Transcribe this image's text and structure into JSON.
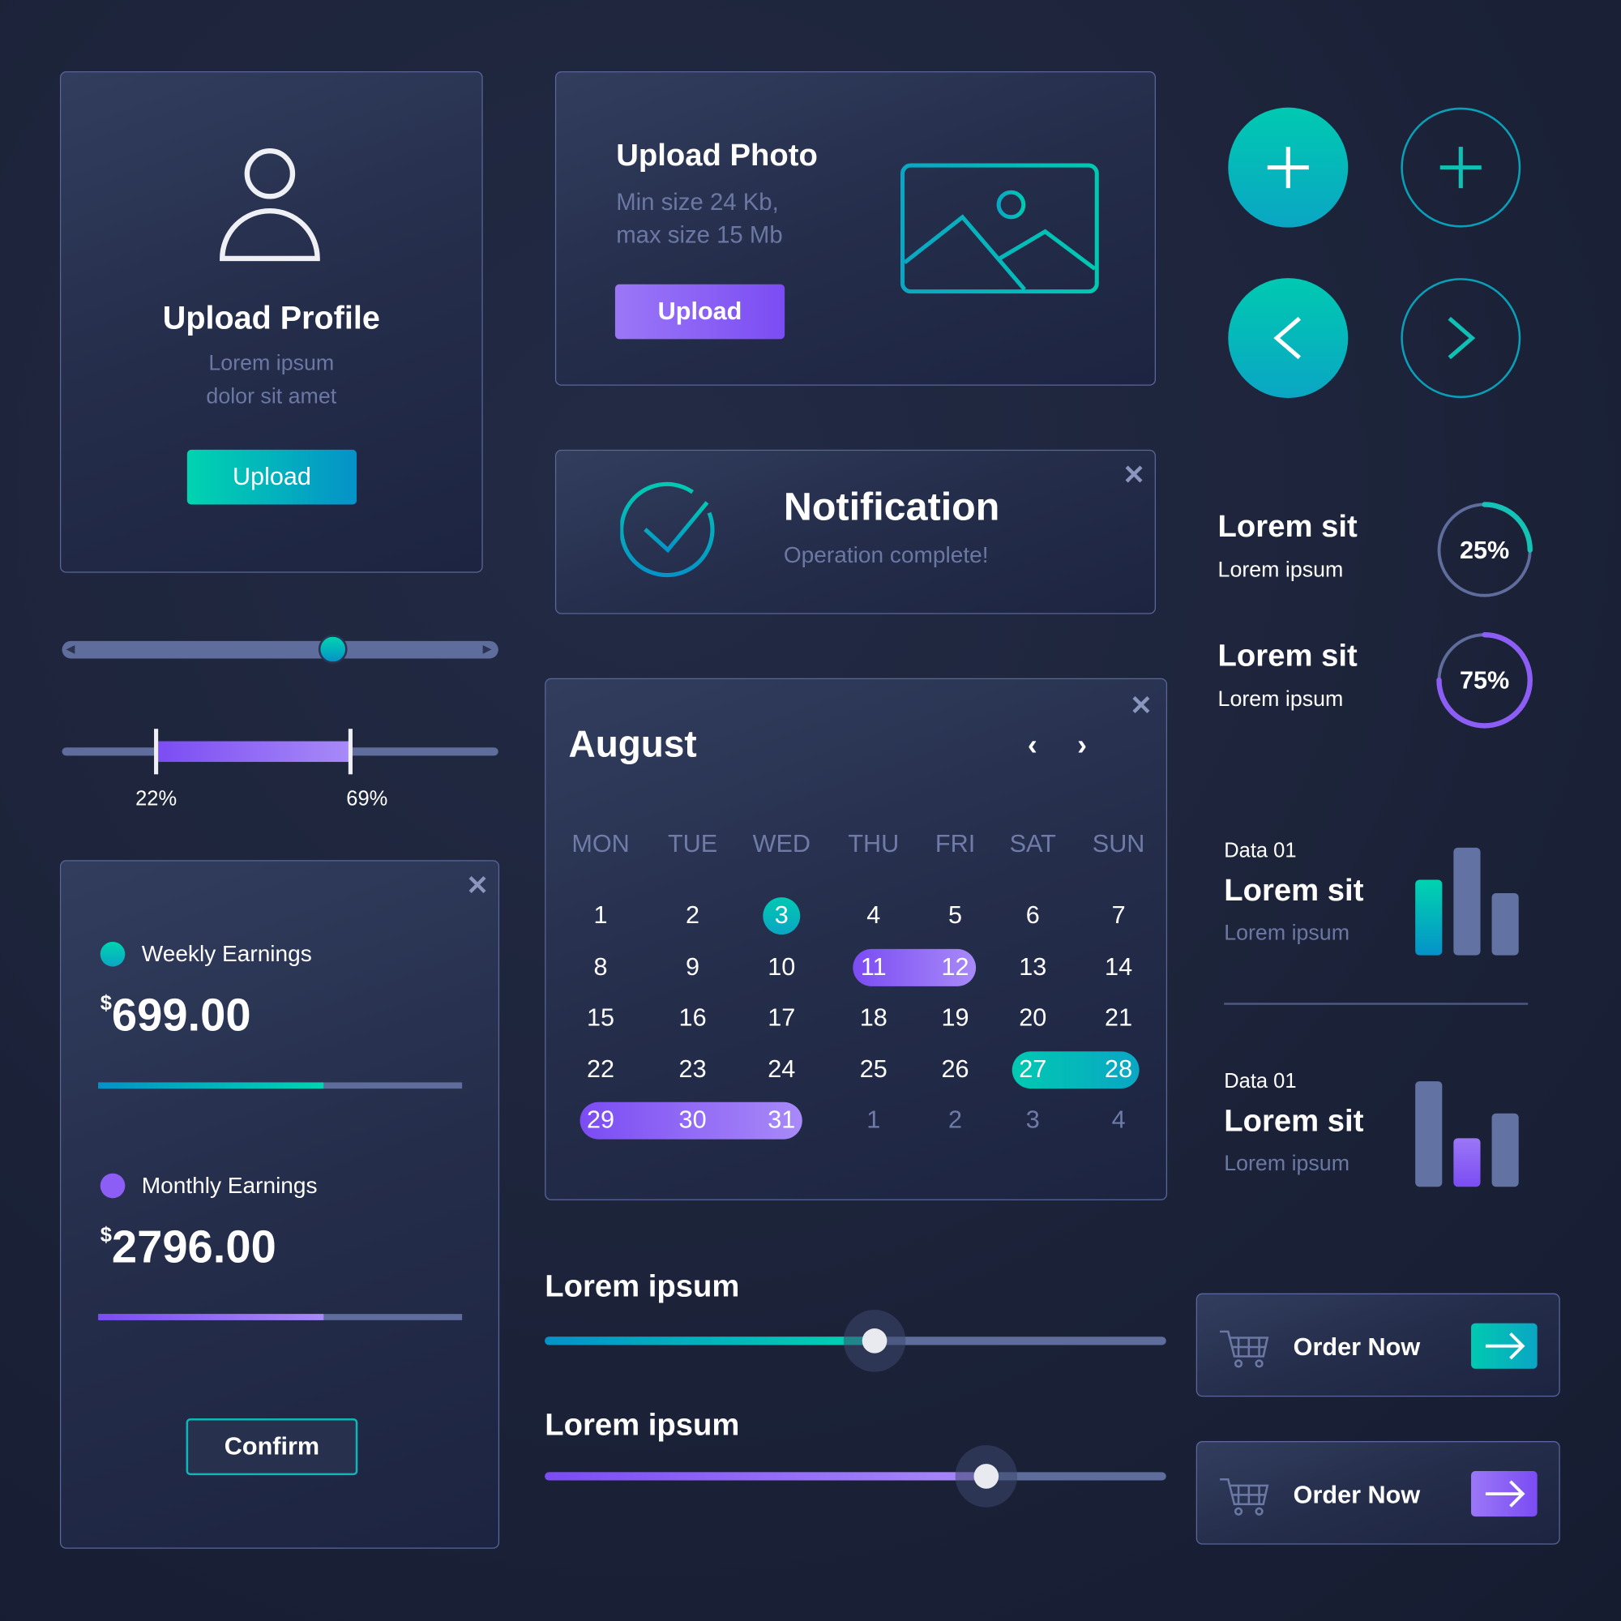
{
  "upload_profile": {
    "title": "Upload Profile",
    "subtitle_line1": "Lorem ipsum",
    "subtitle_line2": "dolor sit amet",
    "button": "Upload",
    "icon": "user-icon"
  },
  "single_slider": {
    "value": 0.62
  },
  "range_slider": {
    "low": 22,
    "high": 69,
    "low_label": "22%",
    "high_label": "69%"
  },
  "earnings": {
    "weekly_label": "Weekly Earnings",
    "weekly_currency": "$",
    "weekly_value": "699.00",
    "weekly_progress": 0.62,
    "monthly_label": "Monthly Earnings",
    "monthly_currency": "$",
    "monthly_value": "2796.00",
    "monthly_progress": 0.62,
    "confirm": "Confirm"
  },
  "upload_photo": {
    "title": "Upload Photo",
    "line1": "Min size 24 Kb,",
    "line2": "max size 15 Mb",
    "button": "Upload",
    "icon": "image-icon"
  },
  "notification": {
    "title": "Notification",
    "message": "Operation complete!",
    "icon": "check-circle-icon"
  },
  "calendar": {
    "month": "August",
    "weekdays": [
      "MON",
      "TUE",
      "WED",
      "THU",
      "FRI",
      "SAT",
      "SUN"
    ],
    "days": [
      "1",
      "2",
      "3",
      "4",
      "5",
      "6",
      "7",
      "8",
      "9",
      "10",
      "11",
      "12",
      "13",
      "14",
      "15",
      "16",
      "17",
      "18",
      "19",
      "20",
      "21",
      "22",
      "23",
      "24",
      "25",
      "26",
      "27",
      "28",
      "29",
      "30",
      "31",
      "1",
      "2",
      "3",
      "4"
    ],
    "selected_today": "3",
    "purple_ranges": [
      [
        "11",
        "12"
      ],
      [
        "29",
        "31"
      ]
    ],
    "teal_range": [
      "27",
      "28"
    ]
  },
  "sliders": [
    {
      "label": "Lorem ipsum",
      "value": 0.53
    },
    {
      "label": "Lorem ipsum",
      "value": 0.71
    }
  ],
  "round_buttons": [
    "plus-icon",
    "plus-icon",
    "chevron-left-icon",
    "chevron-right-icon"
  ],
  "progress_items": [
    {
      "title": "Lorem sit",
      "subtitle": "Lorem ipsum",
      "percent": 25,
      "label": "25%",
      "color": "#14c3b6"
    },
    {
      "title": "Lorem sit",
      "subtitle": "Lorem ipsum",
      "percent": 75,
      "label": "75%",
      "color": "#8d5ef5"
    }
  ],
  "data_items": [
    {
      "overline": "Data 01",
      "title": "Lorem sit",
      "subtitle": "Lorem ipsum",
      "bars": [
        0.7,
        1.0,
        0.58
      ],
      "highlight": 0
    },
    {
      "overline": "Data 01",
      "title": "Lorem sit",
      "subtitle": "Lorem ipsum",
      "bars": [
        0.98,
        0.45,
        0.68
      ],
      "highlight": 1
    }
  ],
  "order_buttons": [
    {
      "label": "Order Now",
      "accent": "teal"
    },
    {
      "label": "Order Now",
      "accent": "purple"
    }
  ],
  "colors": {
    "teal": "#00c9b1",
    "blue": "#0592c8",
    "purple": "#8d5ef5",
    "background": "#1b2238",
    "muted": "#6b78a3"
  }
}
